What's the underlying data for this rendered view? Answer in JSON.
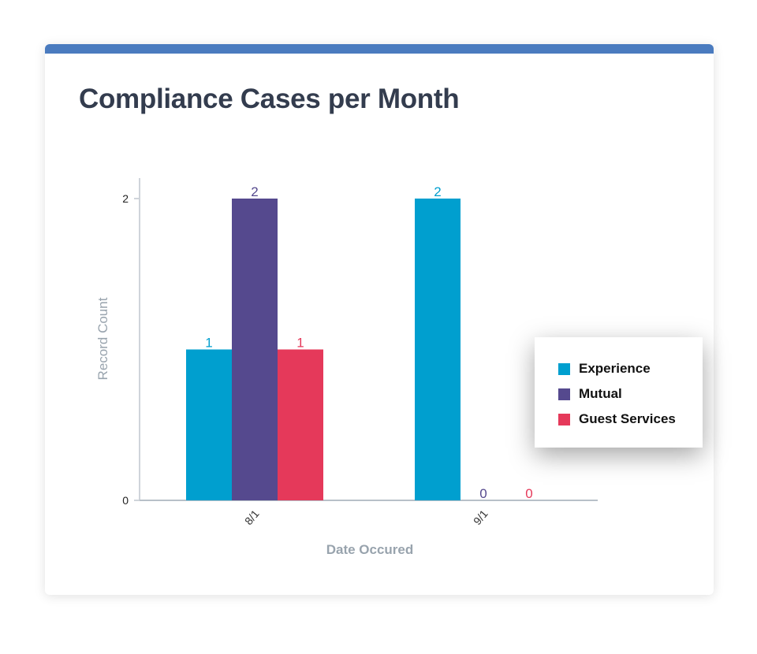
{
  "card": {
    "title": "Compliance Cases per Month",
    "accent": "#4a7bbf"
  },
  "chart_data": {
    "type": "bar",
    "title": "Compliance Cases per Month",
    "xlabel": "Date Occured",
    "ylabel": "Record Count",
    "categories": [
      "8/1",
      "9/1"
    ],
    "yticks": [
      "0",
      "2"
    ],
    "ylim": [
      0,
      2
    ],
    "grid": false,
    "legend_position": "right",
    "series": [
      {
        "name": "Experience",
        "color": "#009fcf",
        "values": [
          1,
          2
        ],
        "labels": [
          "1",
          "2"
        ]
      },
      {
        "name": "Mutual",
        "color": "#55498e",
        "values": [
          2,
          0
        ],
        "labels": [
          "2",
          "0"
        ]
      },
      {
        "name": "Guest Services",
        "color": "#e5395a",
        "values": [
          1,
          0
        ],
        "labels": [
          "1",
          "0"
        ]
      }
    ]
  }
}
